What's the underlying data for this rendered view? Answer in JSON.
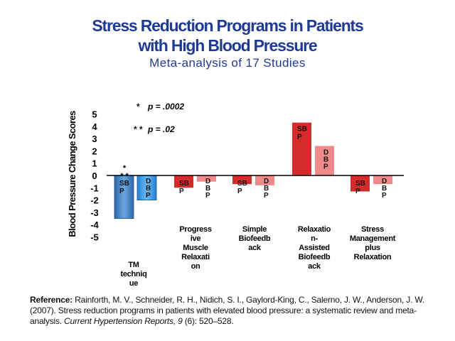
{
  "title_line1": "Stress Reduction Programs in Patients",
  "title_line2": "with High Blood Pressure",
  "subtitle": "Meta-analysis of 17 Studies",
  "chart_data": {
    "type": "bar",
    "ylabel": "Blood Pressure Change Scores",
    "ylim": [
      -5,
      5
    ],
    "y_ticks": [
      "5",
      "4",
      "3",
      "2",
      "1",
      "0",
      "-1",
      "-2",
      "-3",
      "-4",
      "-5"
    ],
    "categories": [
      "TM technique",
      "Progressive Muscle Relaxation",
      "Simple Biofeedback",
      "Relaxation-Assisted Biofeedback",
      "Stress Management plus Relaxation"
    ],
    "category_labels": [
      [
        "TM",
        "techniq",
        "ue"
      ],
      [
        "Progress",
        "ive",
        "Muscle",
        "Relaxati",
        "on"
      ],
      [
        "Simple",
        "Biofeedb",
        "ack"
      ],
      [
        "Relaxatio",
        "n-",
        "Assisted",
        "Biofeedb",
        "ack"
      ],
      [
        "Stress",
        "Management",
        "plus",
        "Relaxation"
      ]
    ],
    "series": [
      {
        "name": "SBP",
        "values": [
          -3.5,
          -1.0,
          -0.7,
          4.3,
          -1.3
        ]
      },
      {
        "name": "DBP",
        "values": [
          -2.0,
          -0.5,
          -0.8,
          2.4,
          -0.7
        ]
      }
    ],
    "bar_label_lines": {
      "SBP": [
        "SB",
        "P"
      ],
      "DBP": [
        "D",
        "B",
        "P"
      ]
    },
    "significance_marks": [
      "*",
      "* *"
    ],
    "legend": [
      {
        "mark": "*",
        "text": "p = .0002"
      },
      {
        "mark": "* *",
        "text": "p = .02"
      }
    ],
    "colors": {
      "tm_sbp": "#3d7fc4",
      "tm_dbp": "#2f8fe0",
      "sbp": "#d62b2b",
      "dbp": "#f08a8a",
      "axis": "#000000"
    }
  },
  "reference": {
    "label": "Reference:",
    "text_before": " Rainforth, M. V., Schneider, R. H., Nidich, S. I., Gaylord-King, C., Salerno, J. W., Anderson, J. W. (2007). Stress reduction programs in patients with elevated blood pressure: a systematic review and meta-analysis. ",
    "journal": "Current Hypertension Reports, 9",
    "text_after": " (6): 520–528."
  }
}
